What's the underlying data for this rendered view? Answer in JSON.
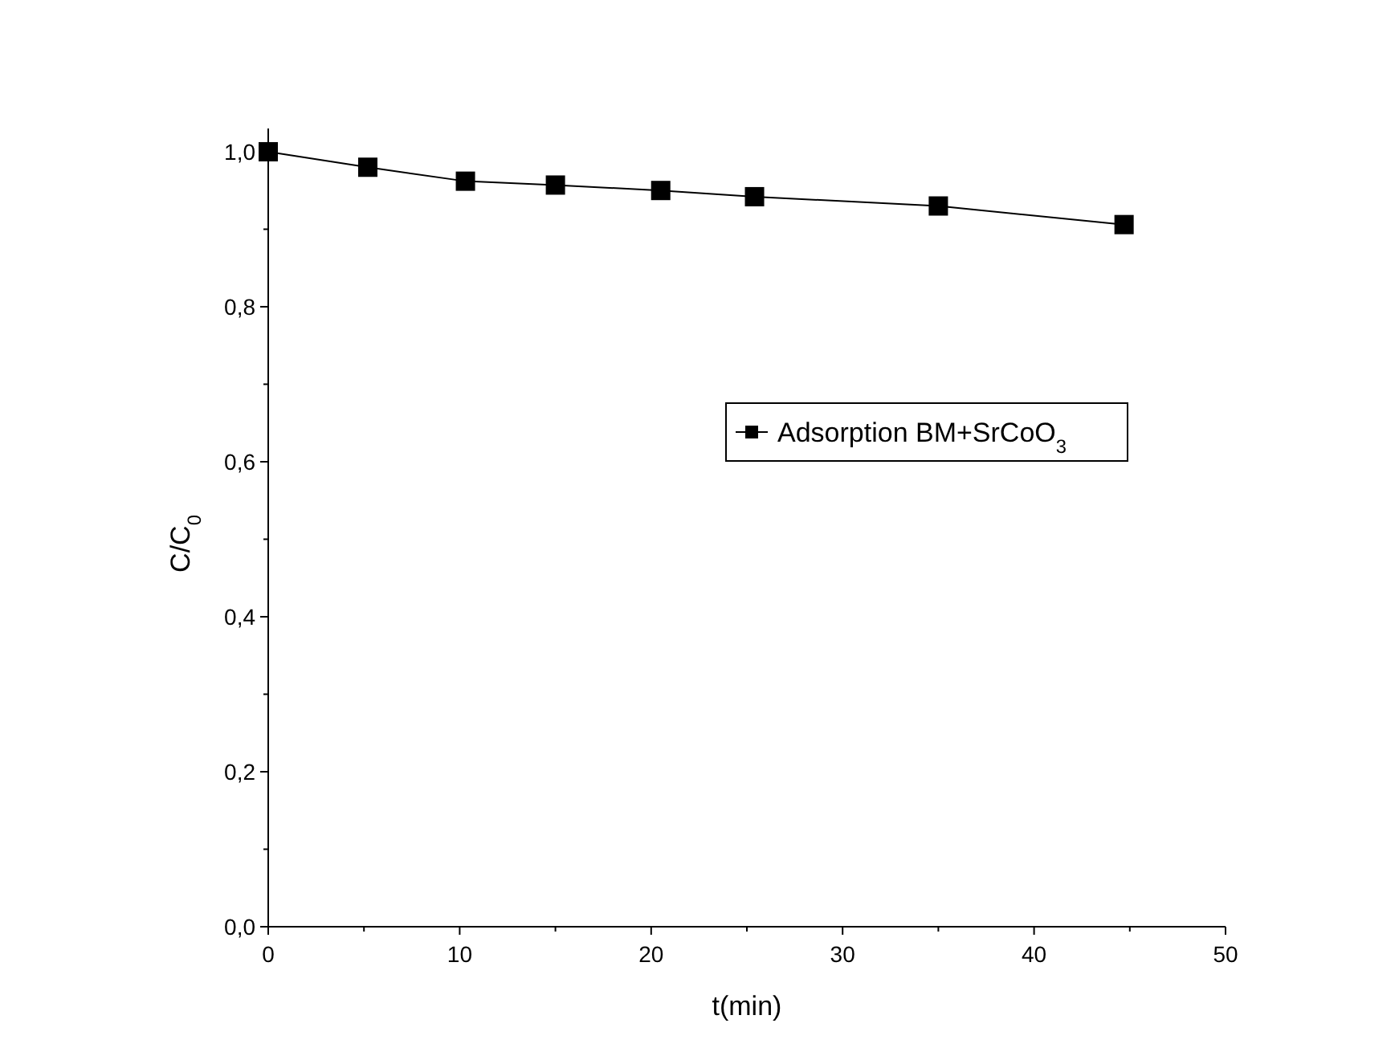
{
  "chart_data": {
    "type": "line",
    "xlabel": "t(min)",
    "ylabel": "C/C$_{0}$",
    "x": [
      0,
      5.2,
      10.3,
      15,
      20.5,
      25.4,
      35,
      44.7
    ],
    "series": [
      {
        "name": "Adsorption BM+SrCoO$_{3}$",
        "color": "#000000",
        "values": [
          1.0,
          0.98,
          0.962,
          0.957,
          0.95,
          0.942,
          0.93,
          0.906
        ]
      }
    ],
    "xlim": [
      0,
      50
    ],
    "xticks": [
      0,
      {
        "value": 5,
        "label": null
      },
      10,
      {
        "value": 15,
        "label": null
      },
      20,
      {
        "value": 25,
        "label": null
      },
      30,
      {
        "value": 35,
        "label": null
      },
      40,
      {
        "value": 45,
        "label": null
      },
      50
    ],
    "ylim": [
      0,
      1.03
    ],
    "yticks": [
      {
        "value": 0,
        "label": "0,0"
      },
      {
        "value": 0.1,
        "label": null
      },
      {
        "value": 0.2,
        "label": "0,2"
      },
      {
        "value": 0.3,
        "label": null
      },
      {
        "value": 0.4,
        "label": "0,4"
      },
      {
        "value": 0.5,
        "label": null
      },
      {
        "value": 0.6,
        "label": "0,6"
      },
      {
        "value": 0.7,
        "label": null
      },
      {
        "value": 0.8,
        "label": "0,8"
      },
      {
        "value": 0.9,
        "label": null
      },
      {
        "value": 1.0,
        "label": "1,0"
      }
    ],
    "marker": "square",
    "line_style": "solid",
    "legend": "right",
    "grid": false
  }
}
